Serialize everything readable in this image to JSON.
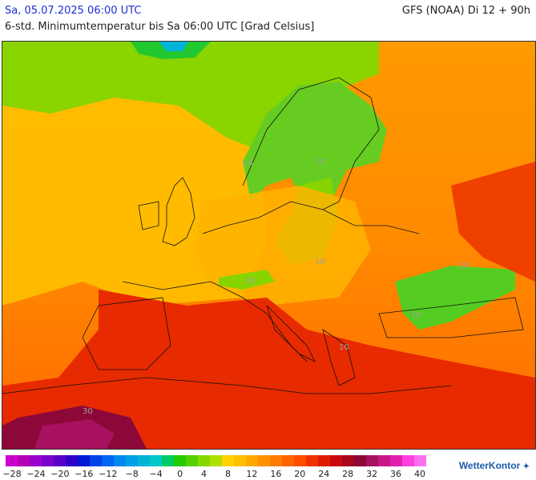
{
  "header": {
    "datetime": "Sa, 05.07.2025 06:00 UTC",
    "model": "GFS (NOAA) Di 12 + 90h",
    "subtitle": "6-std. Minimumtemperatur bis Sa 06:00 UTC [Grad Celsius]"
  },
  "map": {
    "contour_labels": [
      "10",
      "10",
      "10",
      "10",
      "10",
      "10",
      "10",
      "30"
    ]
  },
  "legend": {
    "colors": [
      "#cc00cc",
      "#b300b3",
      "#9900cc",
      "#7a00cc",
      "#5a00c8",
      "#2e00c8",
      "#0018d8",
      "#0044e8",
      "#0066f0",
      "#0088f0",
      "#00a0e8",
      "#00b4d8",
      "#00c8c8",
      "#00cc66",
      "#22cc00",
      "#55d000",
      "#88d800",
      "#b0e000",
      "#ffd200",
      "#ffbe00",
      "#ffa800",
      "#ff9200",
      "#ff7c00",
      "#ff6400",
      "#ff4c00",
      "#f03000",
      "#e01a00",
      "#c80a10",
      "#a8081c",
      "#8c0838",
      "#a81060",
      "#c81888",
      "#e020b0",
      "#ff40e0",
      "#ff70f0"
    ],
    "ticks": [
      "−28",
      "−24",
      "−20",
      "−16",
      "−12",
      "−8",
      "−4",
      "0",
      "4",
      "8",
      "12",
      "16",
      "20",
      "24",
      "28",
      "32",
      "36",
      "40"
    ]
  },
  "logo": {
    "text": "WetterKontor"
  }
}
